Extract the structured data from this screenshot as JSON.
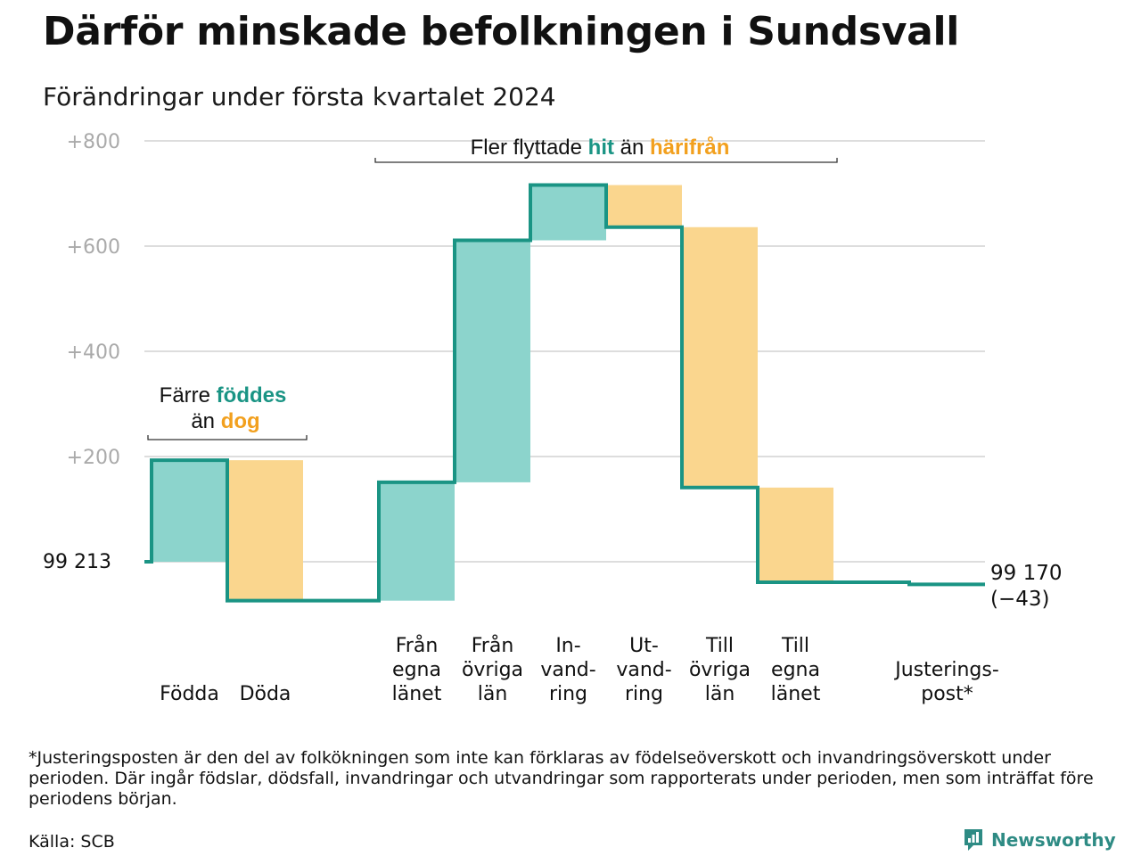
{
  "title": "Därför minskade befolkningen i Sundsvall",
  "subtitle": "Förändringar under första kvartalet 2024",
  "chart_data": {
    "type": "waterfall",
    "baseline": 99213,
    "start_label": "99  213",
    "end_label_value": "99 170",
    "end_label_change": "(−43)",
    "yticks": [
      {
        "value": 200,
        "label": "+200"
      },
      {
        "value": 400,
        "label": "+400"
      },
      {
        "value": 600,
        "label": "+600"
      },
      {
        "value": 800,
        "label": "+800"
      }
    ],
    "ylim": [
      -90,
      800
    ],
    "steps": [
      {
        "label": "Födda",
        "value": 193,
        "kind": "gain"
      },
      {
        "label": "Döda",
        "value": -267,
        "kind": "loss"
      },
      {
        "label": "Från egna länet",
        "value": 225,
        "kind": "gain"
      },
      {
        "label": "Från övriga län",
        "value": 460,
        "kind": "gain"
      },
      {
        "label": "In-vand-ring",
        "value": 105,
        "kind": "gain"
      },
      {
        "label": "Ut-vand-ring",
        "value": -80,
        "kind": "loss"
      },
      {
        "label": "Till övriga län",
        "value": -495,
        "kind": "loss"
      },
      {
        "label": "Till egna länet",
        "value": -180,
        "kind": "loss"
      },
      {
        "label": "Justerings-post*",
        "value": -4,
        "kind": "adjust"
      }
    ],
    "categories": [
      {
        "lines": [
          "Födda"
        ]
      },
      {
        "lines": [
          "Döda"
        ]
      },
      {
        "lines": []
      },
      {
        "lines": [
          "Från",
          "egna",
          "länet"
        ]
      },
      {
        "lines": [
          "Från",
          "övriga",
          "län"
        ]
      },
      {
        "lines": [
          "In-",
          "vand-",
          "ring"
        ]
      },
      {
        "lines": [
          "Ut-",
          "vand-",
          "ring"
        ]
      },
      {
        "lines": [
          "Till",
          "övriga",
          "län"
        ]
      },
      {
        "lines": [
          "Till",
          "egna",
          "länet"
        ]
      },
      {
        "lines": []
      },
      {
        "lines": [
          "Justerings-",
          "post*"
        ]
      }
    ],
    "annotations": {
      "births": {
        "prefix": "Färre",
        "hl1": "föddes",
        "mid": "än",
        "hl2": "dog"
      },
      "migration": {
        "prefix": "Fler flyttade",
        "hl1": "hit",
        "mid": "än",
        "hl2": "härifrån"
      }
    },
    "colors": {
      "gain_fill": "#8cd4cc",
      "loss_fill": "#fad68e",
      "line": "#1a9484",
      "gain_text": "#1a9484",
      "loss_text": "#f2a01e",
      "grid": "#dddddd",
      "tick_text": "#aaaaaa"
    }
  },
  "footnote": "*Justeringsposten är den del av folkökningen som inte kan förklaras av födelseöverskott och invandringsöverskott under perioden. Där ingår födslar, dödsfall, invandringar och utvandringar som rapporterats under perioden, men som inträffat före periodens början.",
  "source": "Källa: SCB",
  "brand": "Newsworthy"
}
